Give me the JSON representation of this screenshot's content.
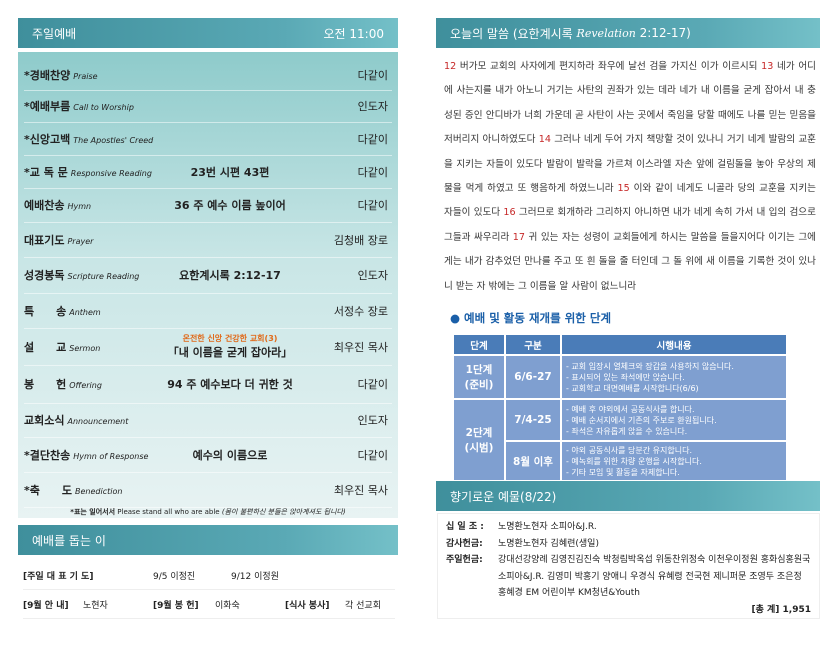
{
  "worship": {
    "title": "주일예배",
    "time": "오전 11:00",
    "rows": [
      {
        "ko": "*경배찬양",
        "en": "Praise",
        "mid": "",
        "who": "다같이"
      },
      {
        "ko": "*예배부름",
        "en": "Call to Worship",
        "mid": "",
        "who": "인도자"
      },
      {
        "ko": "*신앙고백",
        "en": "The Apostles' Creed",
        "mid": "",
        "who": "다같이"
      },
      {
        "ko": "*교 독 문",
        "en": "Responsive Reading",
        "mid": "23번 시편 43편",
        "who": "다같이"
      },
      {
        "ko": "예배찬송",
        "en": "Hymn",
        "mid": "36 주 예수 이름 높이어",
        "who": "다같이"
      },
      {
        "ko": "대표기도",
        "en": "Prayer",
        "mid": "",
        "who": "김청배 장로"
      },
      {
        "ko": "성경봉독",
        "en": "Scripture Reading",
        "mid": "요한계시록 2:12-17",
        "who": "인도자"
      },
      {
        "ko": "특　　송",
        "en": "Anthem",
        "mid": "",
        "who": "서정수 장로"
      },
      {
        "ko": "설　　교",
        "en": "Sermon",
        "sub": "온전한 신앙 건강한 교회(3)",
        "mid": "「내 이름을 굳게 잡아라」",
        "who": "최우진 목사"
      },
      {
        "ko": "봉　　헌",
        "en": "Offering",
        "mid": "94 주 예수보다 더 귀한 것",
        "who": "다같이"
      },
      {
        "ko": "교회소식",
        "en": "Announcement",
        "mid": "",
        "who": "인도자"
      },
      {
        "ko": "*결단찬송",
        "en": "Hymn of Response",
        "mid": "예수의 이름으로",
        "who": "다같이"
      },
      {
        "ko": "*축　　도",
        "en": "Benediction",
        "mid": "",
        "who": "최우진 목사"
      }
    ],
    "note_ko": "*표는 일어서서",
    "note_en": "Please stand all who are able",
    "note_paren": "(몸이 불편하신 분들은 앉아계셔도 됩니다)"
  },
  "helpers": {
    "title": "예배를 돕는 이",
    "prayer_label": "[주일 대 표 기 도]",
    "prayer1": "9/5 이정진",
    "prayer2": "9/12 이정원",
    "guide_label": "[9월 안 내]",
    "guide": "노현자",
    "offer_label": "[9월 봉 헌]",
    "offer": "이화숙",
    "meal_label": "[식사 봉사]",
    "meal": "각 선교회"
  },
  "word": {
    "title": "오늘의 말씀 (요한계시록",
    "title_en": "Revelation",
    "title_ref": "2:12-17)",
    "verses": [
      {
        "n": "12",
        "t": "버가모 교회의 사자에게 편지하라 좌우에 날선 검을 가지신 이가 이르시되"
      },
      {
        "n": "13",
        "t": "네가 어디에 사는지를 내가 아노니 거기는 사탄의 권좌가 있는 데라 네가 내 이름을 굳게 잡아서 내 충성된 증인 안디바가 너희 가운데 곧 사탄이 사는 곳에서 죽임을 당할 때에도 나를 믿는 믿음을 저버리지 아니하였도다"
      },
      {
        "n": "14",
        "t": "그러나 네게 두어 가지 책망할 것이 있나니 거기 네게 발람의 교훈을 지키는 자들이 있도다 발람이 발락을 가르쳐 이스라엘 자손 앞에 걸림돌을 놓아 우상의 제물을 먹게 하였고 또 행음하게 하였느니라"
      },
      {
        "n": "15",
        "t": "이와 같이 네게도 니골라 당의 교훈을 지키는 자들이 있도다"
      },
      {
        "n": "16",
        "t": "그러므로 회개하라 그리하지 아니하면 내가 네게 속히 가서 내 입의 검으로 그들과 싸우리라"
      },
      {
        "n": "17",
        "t": "귀 있는 자는 성령이 교회들에게 하시는 말씀을 들을지어다 이기는 그에게는 내가 감추었던 만나를 주고 또 흰 돌을 줄 터인데 그 돌 위에 새 이름을 기록한 것이 있나니 받는 자 밖에는 그 이름을 알 사람이 없느니라"
      }
    ]
  },
  "steps": {
    "title": "예배 및 활동 재개를 위한 단계",
    "headers": [
      "단계",
      "구분",
      "시행내용"
    ],
    "stage1": "1단계\n(준비)",
    "stage2": "2단계\n(시범)",
    "rows": [
      {
        "period": "6/6-27",
        "items": [
          "-  교회 입장시 열체크와 장갑을 사용하지 않습니다.",
          "-  표시되어 있는 좌석에만 앉습니다.",
          "-  교회학교 대면예배를 시작합니다(6/6)"
        ]
      },
      {
        "period": "7/4-25",
        "items": [
          "-  예배 후 야외에서 공동식사를 합니다.",
          "-  예배 순서지에서 기존의 주보로 환원됩니다.",
          "-  좌석은 자유롭게 앉을 수 있습니다."
        ]
      },
      {
        "period": "8월 이후",
        "items": [
          "-  야외 공동식사를 당분간 유지합니다.",
          "-  예녹회를 위한 차량 운행을 시작합니다.",
          "-  기타 모임 및 활동을 자제합니다."
        ]
      }
    ]
  },
  "offering": {
    "title": "향기로운 예물(8/22)",
    "lines": [
      {
        "label": "십 일 조 :",
        "text": "노명환노현자 소피아&J.R."
      },
      {
        "label": "감사헌금:",
        "text": "노명환노현자 김혜련(생일)"
      },
      {
        "label": "주일헌금:",
        "text": "강대선강양례 김영진김진숙 박청림박옥섭 위동찬위정숙 이천우이정원 홍화심홍원국 소피아&J.R. 김영미 박홍기 양애니 우경식 유혜령 전국현 제니퍼문 조영두 조은정 홍혜경 EM 어린이부 KM청년&Youth"
      }
    ],
    "total_label": "[총 계]",
    "total": "1,951"
  }
}
